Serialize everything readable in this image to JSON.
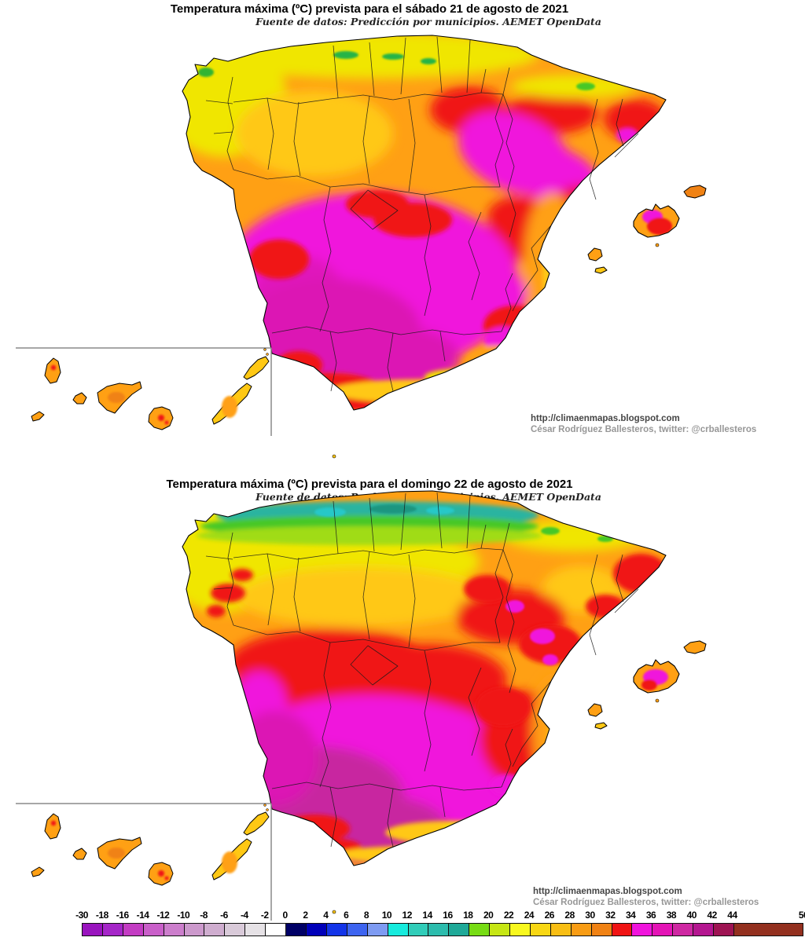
{
  "page": {
    "background": "#FFFFFF"
  },
  "maps": [
    {
      "title": "Temperatura máxima (ºC) prevista para el sábado 21 de agosto de 2021",
      "subtitle": "Fuente de datos: Predicción por municipios. AEMET OpenData",
      "credit_url": "http://climaenmapas.blogspot.com",
      "credit_author": "César Rodríguez Ballesteros, twitter: @crballesteros"
    },
    {
      "title": "Temperatura máxima (ºC) prevista para el domingo 22 de agosto de 2021",
      "subtitle": "Fuente de datos: Predicción por municipios. AEMET OpenData",
      "credit_url": "http://climaenmapas.blogspot.com",
      "credit_author": "César Rodríguez Ballesteros, twitter: @crballesteros"
    }
  ],
  "colorbar": {
    "tick_labels": [
      "-30",
      "-18",
      "-16",
      "-14",
      "-12",
      "-10",
      "-8",
      "-6",
      "-4",
      "-2",
      "0",
      "2",
      "4",
      "6",
      "8",
      "10",
      "12",
      "14",
      "16",
      "18",
      "20",
      "22",
      "24",
      "26",
      "28",
      "30",
      "32",
      "34",
      "36",
      "38",
      "40",
      "42",
      "44",
      "50"
    ],
    "segments": [
      {
        "from": -30,
        "to": -18,
        "color": "#9914BE"
      },
      {
        "from": -18,
        "to": -16,
        "color": "#A526C8"
      },
      {
        "from": -16,
        "to": -14,
        "color": "#C33CC3"
      },
      {
        "from": -14,
        "to": -12,
        "color": "#C95FC9"
      },
      {
        "from": -12,
        "to": -10,
        "color": "#CC7ECC"
      },
      {
        "from": -10,
        "to": -8,
        "color": "#CC99CC"
      },
      {
        "from": -8,
        "to": -6,
        "color": "#CFADCF"
      },
      {
        "from": -6,
        "to": -4,
        "color": "#D9CAD9"
      },
      {
        "from": -4,
        "to": -2,
        "color": "#E6E2E6"
      },
      {
        "from": -2,
        "to": 0,
        "color": "#FFFFFF"
      },
      {
        "from": 0,
        "to": 2,
        "color": "#000066"
      },
      {
        "from": 2,
        "to": 4,
        "color": "#0000B9"
      },
      {
        "from": 4,
        "to": 6,
        "color": "#1334E8"
      },
      {
        "from": 6,
        "to": 8,
        "color": "#3D64F0"
      },
      {
        "from": 8,
        "to": 10,
        "color": "#7E9BF2"
      },
      {
        "from": 10,
        "to": 12,
        "color": "#17EBDD"
      },
      {
        "from": 12,
        "to": 14,
        "color": "#31CDB9"
      },
      {
        "from": 14,
        "to": 16,
        "color": "#2CBCAD"
      },
      {
        "from": 16,
        "to": 18,
        "color": "#1FA998"
      },
      {
        "from": 18,
        "to": 20,
        "color": "#77DC14"
      },
      {
        "from": 20,
        "to": 22,
        "color": "#C6E614"
      },
      {
        "from": 22,
        "to": 24,
        "color": "#F8F81E"
      },
      {
        "from": 24,
        "to": 26,
        "color": "#F8D714"
      },
      {
        "from": 26,
        "to": 28,
        "color": "#F8BE14"
      },
      {
        "from": 28,
        "to": 30,
        "color": "#F89C14"
      },
      {
        "from": 30,
        "to": 32,
        "color": "#F08214"
      },
      {
        "from": 32,
        "to": 34,
        "color": "#F01414"
      },
      {
        "from": 34,
        "to": 36,
        "color": "#F014DC"
      },
      {
        "from": 36,
        "to": 38,
        "color": "#E414B6"
      },
      {
        "from": 38,
        "to": 40,
        "color": "#CE28A2"
      },
      {
        "from": 40,
        "to": 42,
        "color": "#B41690"
      },
      {
        "from": 42,
        "to": 44,
        "color": "#9E1453"
      },
      {
        "from": 44,
        "to": 50,
        "color": "#93301F"
      }
    ]
  },
  "map_palette": {
    "sea": "#FFFFFF",
    "coastline": "#000000",
    "province_border": "#1A1A1A",
    "inset_box": "#8A8A8A",
    "yellow": "#F0E600",
    "gold": "#FFC814",
    "orange": "#FFA014",
    "dark_orange": "#F08214",
    "red": "#F01414",
    "magenta": "#F014DC",
    "deep_magenta": "#DC14B4",
    "purple_magenta": "#C828A0",
    "green": "#3CC828",
    "teal": "#2CB4A0"
  }
}
